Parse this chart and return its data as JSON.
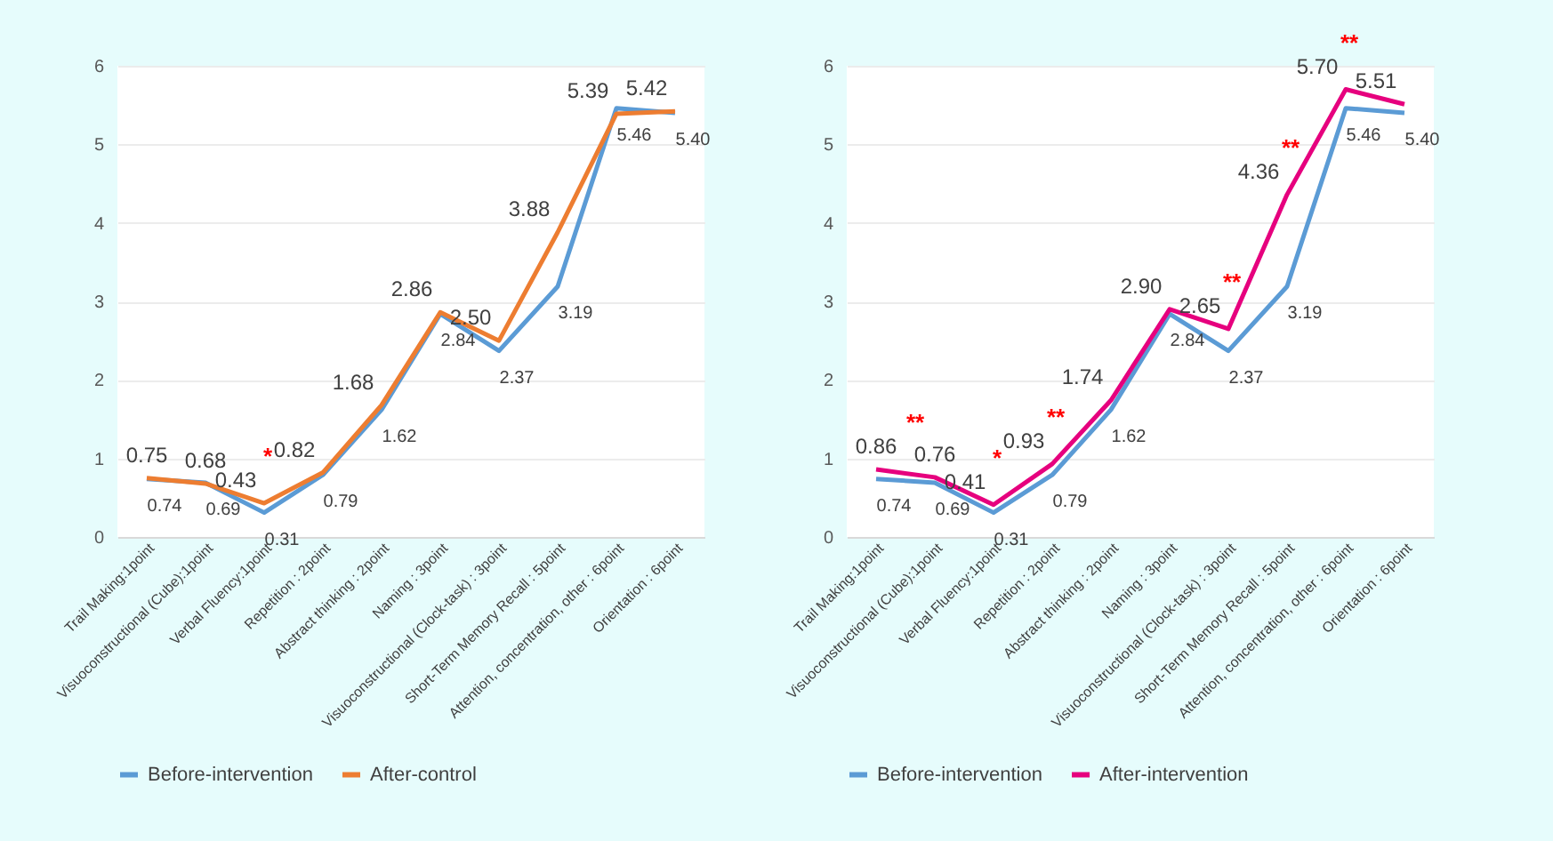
{
  "chart_data": [
    {
      "type": "line",
      "categories": [
        "Trail Making:1point",
        "Visuoconstructional (Cube):1point",
        "Verbal Fluency:1point",
        "Repetition : 2point",
        "Abstract thinking : 2point",
        "Naming : 3point",
        "Visuoconstructional (Clock-task) : 3point",
        "Short-Term Memory Recall : 5point",
        "Attention, concentration, other : 6point",
        "Orientation : 6point"
      ],
      "series": [
        {
          "name": "Before-intervention",
          "color": "#5b9bd5",
          "values": [
            0.74,
            0.69,
            0.31,
            0.79,
            1.62,
            2.84,
            2.37,
            3.19,
            5.46,
            5.4
          ],
          "value_labels": [
            "0.74",
            "0.69",
            "0.31",
            "0.79",
            "1.62",
            "2.84",
            "2.37",
            "3.19",
            "5.46",
            "5.40"
          ]
        },
        {
          "name": "After-control",
          "color": "#ed7d31",
          "values": [
            0.75,
            0.68,
            0.43,
            0.82,
            1.68,
            2.86,
            2.5,
            3.88,
            5.39,
            5.42
          ],
          "value_labels": [
            "0.75",
            "0.68",
            "0.43",
            "0.82",
            "1.68",
            "2.86",
            "2.50",
            "3.88",
            "5.39",
            "5.42"
          ]
        }
      ],
      "annotations": [
        {
          "text": "*",
          "x": "Verbal Fluency:1point",
          "y": 0.43
        }
      ],
      "ylim": [
        0,
        6
      ],
      "yticks": [
        0,
        1,
        2,
        3,
        4,
        5,
        6
      ],
      "grid": "y",
      "legend": "bottom",
      "line_style": "solid"
    },
    {
      "type": "line",
      "categories": [
        "Trail Making:1point",
        "Visuoconstructional (Cube):1point",
        "Verbal Fluency:1point",
        "Repetition : 2point",
        "Abstract thinking : 2point",
        "Naming : 3point",
        "Visuoconstructional (Clock-task) : 3point",
        "Short-Term Memory Recall : 5point",
        "Attention, concentration, other : 6point",
        "Orientation : 6point"
      ],
      "series": [
        {
          "name": "Before-intervention",
          "color": "#5b9bd5",
          "values": [
            0.74,
            0.69,
            0.31,
            0.79,
            1.62,
            2.84,
            2.37,
            3.19,
            5.46,
            5.4
          ],
          "value_labels": [
            "0.74",
            "0.69",
            "0.31",
            "0.79",
            "1.62",
            "2.84",
            "2.37",
            "3.19",
            "5.46",
            "5.40"
          ]
        },
        {
          "name": "After-intervention",
          "color": "#e6007e",
          "values": [
            0.86,
            0.76,
            0.41,
            0.93,
            1.74,
            2.9,
            2.65,
            4.36,
            5.7,
            5.51
          ],
          "value_labels": [
            "0.86",
            "0.76",
            "0.41",
            "0.93",
            "1.74",
            "2.90",
            "2.65",
            "4.36",
            "5.70",
            "5.51"
          ]
        }
      ],
      "annotations": [
        {
          "text": "**",
          "x": "Trail Making:1point",
          "y": 0.86
        },
        {
          "text": "*",
          "x": "Verbal Fluency:1point",
          "y": 0.41
        },
        {
          "text": "**",
          "x": "Repetition : 2point",
          "y": 0.93
        },
        {
          "text": "**",
          "x": "Visuoconstructional (Clock-task) : 3point",
          "y": 2.65
        },
        {
          "text": "**",
          "x": "Short-Term Memory Recall : 5point",
          "y": 4.36
        },
        {
          "text": "**",
          "x": "Attention, concentration, other : 6point",
          "y": 5.7
        }
      ],
      "ylim": [
        0,
        6
      ],
      "yticks": [
        0,
        1,
        2,
        3,
        4,
        5,
        6
      ],
      "grid": "y",
      "legend": "bottom",
      "line_style": "solid"
    }
  ]
}
